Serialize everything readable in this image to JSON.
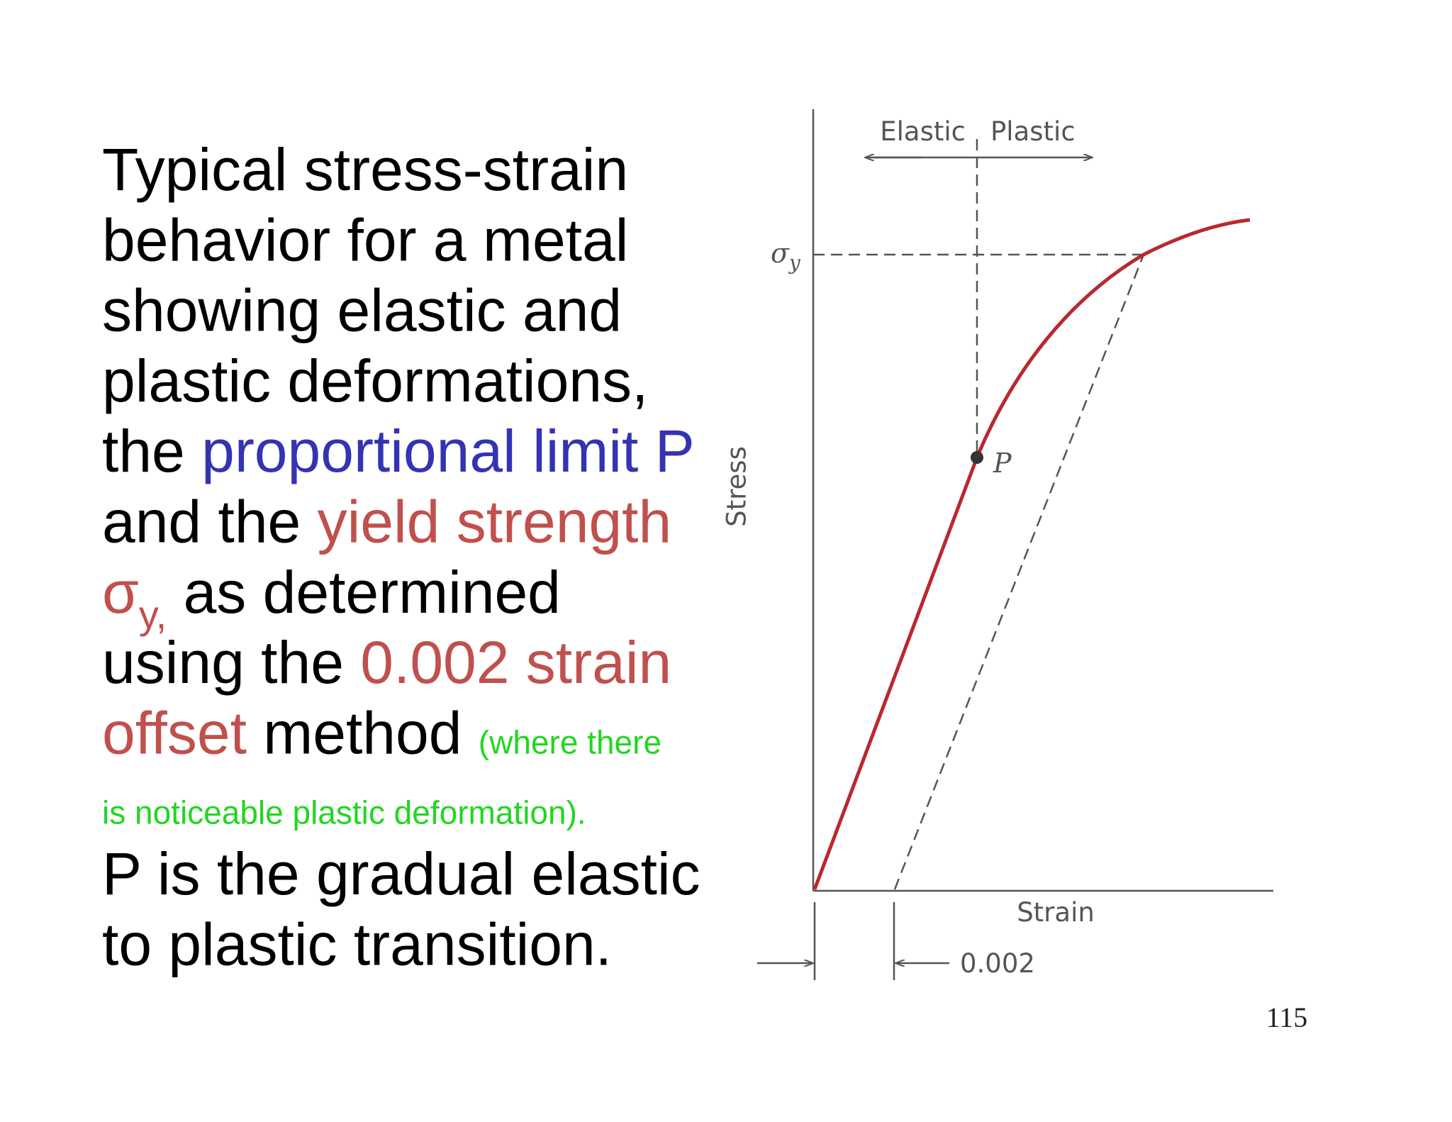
{
  "text": {
    "lines": [
      [
        {
          "text": "Typical stress-strain",
          "color": "#000000"
        }
      ],
      [
        {
          "text": "behavior for a metal",
          "color": "#000000"
        }
      ],
      [
        {
          "text": "showing elastic and",
          "color": "#000000"
        }
      ],
      [
        {
          "text": "plastic deformations,",
          "color": "#000000"
        }
      ],
      [
        {
          "text": "the ",
          "color": "#000000"
        },
        {
          "text": "proportional limit P",
          "color": "#3333b3"
        }
      ],
      [
        {
          "text": "and the ",
          "color": "#000000"
        },
        {
          "text": "yield strength",
          "color": "#c0504d"
        }
      ],
      [
        {
          "text": "σ",
          "color": "#c0504d"
        },
        {
          "text": "y,",
          "color": "#c0504d",
          "style": "subscript"
        },
        {
          "text": " as determined",
          "color": "#000000"
        }
      ],
      [
        {
          "text": "using the ",
          "color": "#000000"
        },
        {
          "text": "0.002 strain",
          "color": "#c0504d"
        }
      ],
      [
        {
          "text": "offset",
          "color": "#c0504d"
        },
        {
          "text": " method ",
          "color": "#000000"
        },
        {
          "text": "(where there",
          "color": "#22d622",
          "style": "small"
        }
      ],
      [
        {
          "text": "is noticeable plastic deformation).",
          "color": "#22d622",
          "style": "small"
        }
      ],
      [
        {
          "text": "P is the gradual elastic",
          "color": "#000000"
        }
      ],
      [
        {
          "text": "to plastic transition.",
          "color": "#000000"
        }
      ]
    ]
  },
  "diagram": {
    "header_left": "Elastic",
    "header_right": "Plastic",
    "yield_symbol": "σ",
    "yield_subscript": "y",
    "point_label": "P",
    "y_axis_label": "Stress",
    "x_axis_label": "Strain",
    "offset_label": "0.002"
  },
  "page_number": "115"
}
